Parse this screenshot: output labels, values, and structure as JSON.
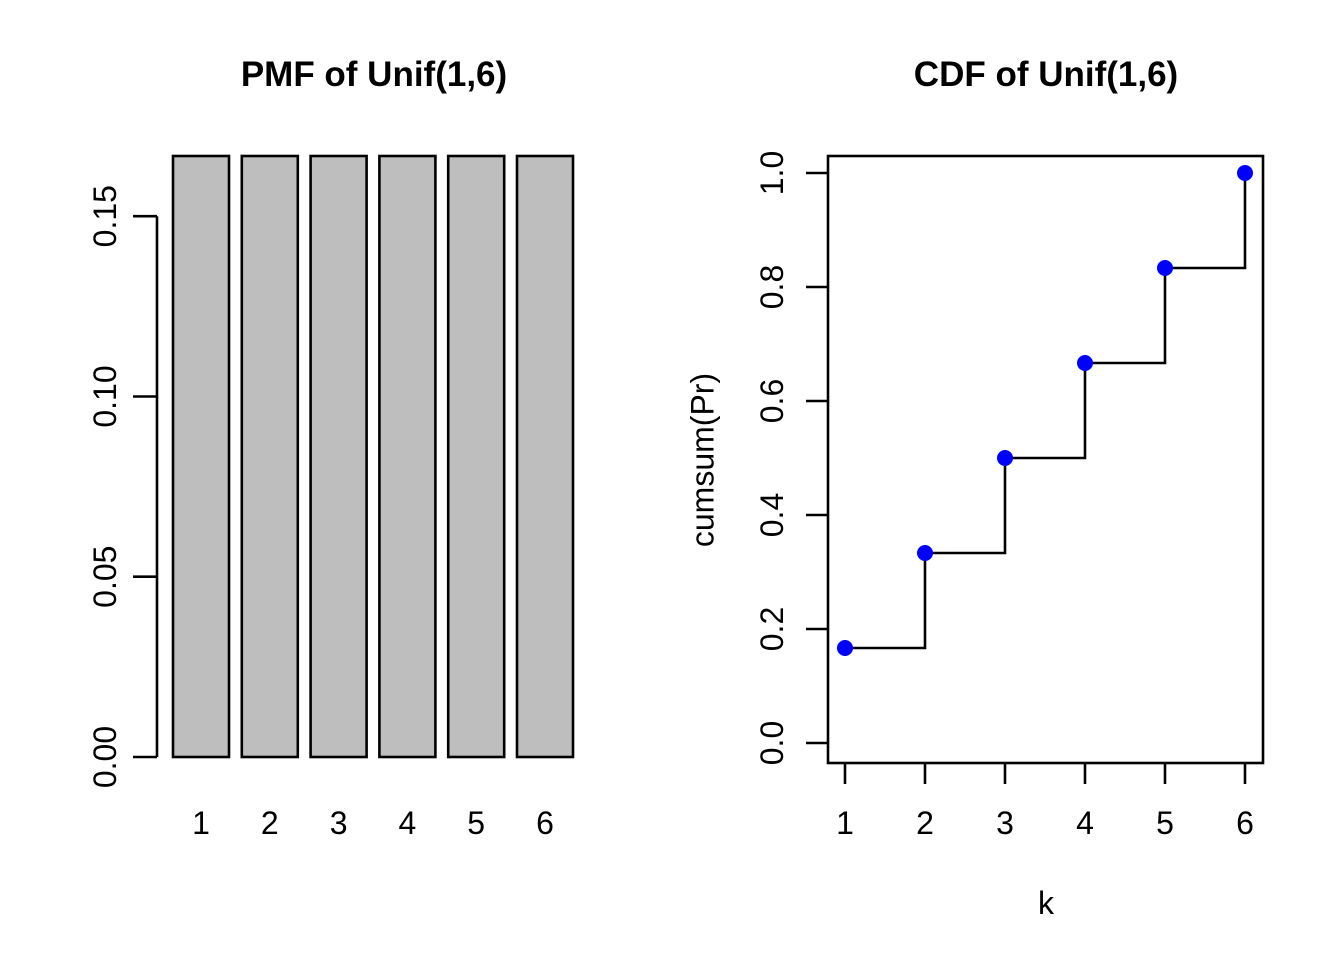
{
  "figure": {
    "background": "#ffffff",
    "foreground": "#000000"
  },
  "chart_data": [
    {
      "type": "bar",
      "title": "PMF of Unif(1,6)",
      "xlabel": "",
      "ylabel": "",
      "categories": [
        "1",
        "2",
        "3",
        "4",
        "5",
        "6"
      ],
      "values": [
        0.1667,
        0.1667,
        0.1667,
        0.1667,
        0.1667,
        0.1667
      ],
      "yticks": {
        "values": [
          0,
          0.05,
          0.1,
          0.15
        ],
        "labels": [
          "0.00",
          "0.05",
          "0.10",
          "0.15"
        ]
      },
      "ylim": [
        0,
        0.1667
      ],
      "grid": false,
      "legend": null,
      "bar_fill": "#bebebe",
      "bar_stroke": "#000000",
      "ytick_label_rotation_deg": 90
    },
    {
      "type": "line",
      "step": true,
      "title": "CDF of Unif(1,6)",
      "xlabel": "k",
      "ylabel": "cumsum(Pr)",
      "x": [
        1,
        2,
        3,
        4,
        5,
        6
      ],
      "y": [
        0.1667,
        0.3333,
        0.5,
        0.6667,
        0.8333,
        1.0
      ],
      "xticks": {
        "values": [
          1,
          2,
          3,
          4,
          5,
          6
        ],
        "labels": [
          "1",
          "2",
          "3",
          "4",
          "5",
          "6"
        ]
      },
      "yticks": {
        "values": [
          0,
          0.2,
          0.4,
          0.6,
          0.8,
          1.0
        ],
        "labels": [
          "0.0",
          "0.2",
          "0.4",
          "0.6",
          "0.8",
          "1.0"
        ]
      },
      "xlim": [
        1,
        6
      ],
      "ylim": [
        0,
        1
      ],
      "grid": false,
      "legend": null,
      "box": true,
      "line_color": "#000000",
      "point_color": "#0000ff",
      "point_style": "filled-circle",
      "ytick_label_rotation_deg": 90
    }
  ]
}
